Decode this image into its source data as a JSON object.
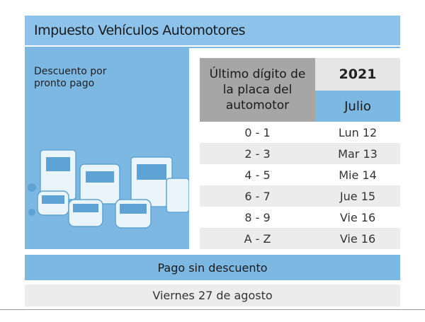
{
  "header": {
    "title": "Impuesto Vehículos Automotores",
    "subtitle": "Descuento por pronto pago"
  },
  "table": {
    "column_header": "Último dígito de la placa del automotor",
    "year": "2021",
    "month": "Julio",
    "rows": [
      [
        "0 - 1",
        "Lun 12"
      ],
      [
        "2 - 3",
        "Mar 13"
      ],
      [
        "4 - 5",
        "Mie 14"
      ],
      [
        "6 - 7",
        "Jue 15"
      ],
      [
        "8 - 9",
        "Vie 16"
      ],
      [
        "A - Z",
        "Vie 16"
      ]
    ]
  },
  "footer": {
    "label": "Pago sin descuento",
    "date": "Viernes 27 de agosto"
  }
}
